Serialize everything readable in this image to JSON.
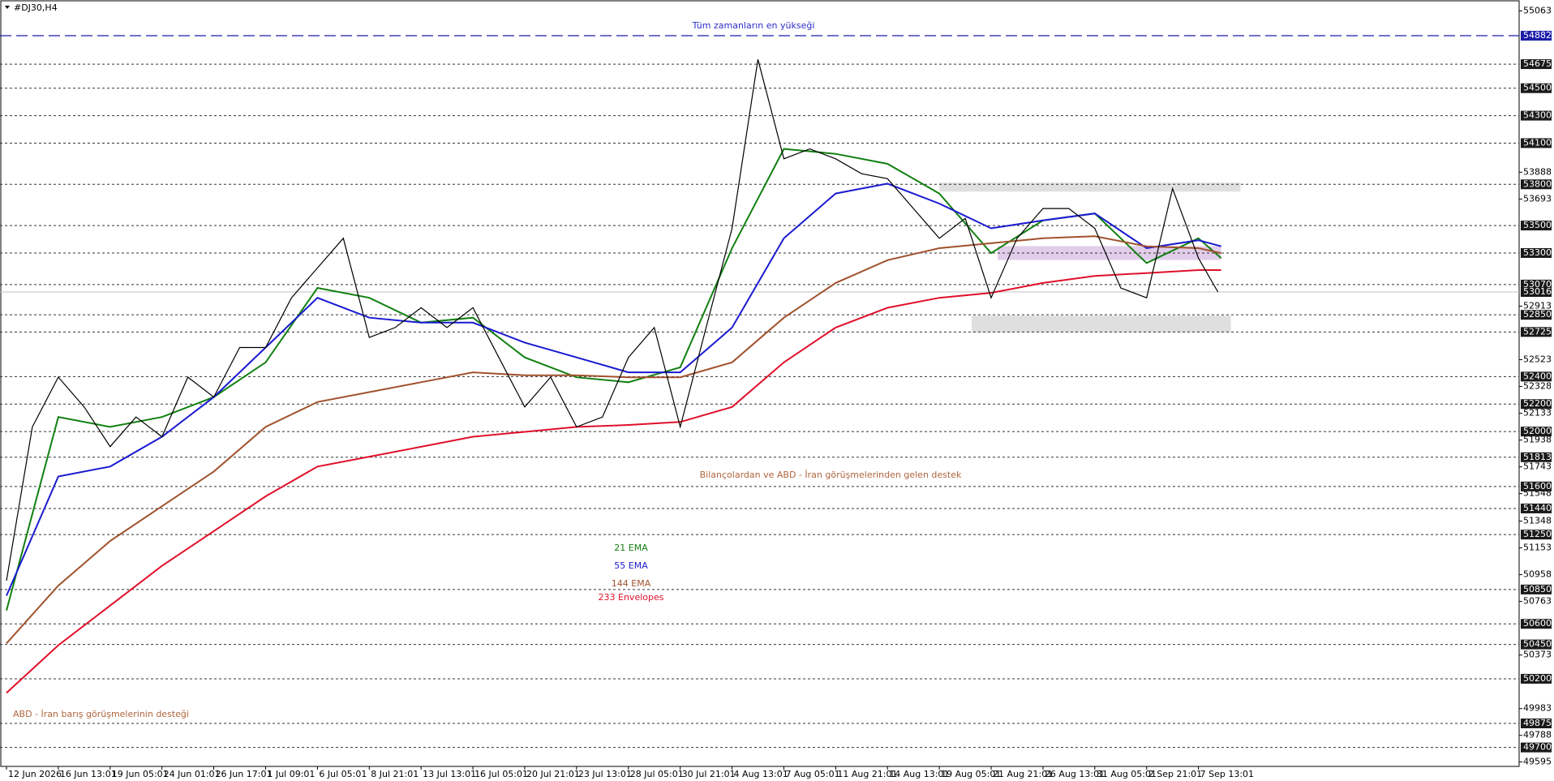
{
  "chart_data": {
    "type": "line",
    "title": "#DJ30,H4",
    "xlim": [
      -2,
      467
    ],
    "ylim": [
      49562,
      55142
    ],
    "xticks": [
      {
        "value": 0,
        "label": "12 Jun 2026"
      },
      {
        "value": 16,
        "label": "16 Jun 13:01"
      },
      {
        "value": 32,
        "label": "19 Jun 05:01"
      },
      {
        "value": 48,
        "label": "24 Jun 01:01"
      },
      {
        "value": 64,
        "label": "26 Jun 17:01"
      },
      {
        "value": 80,
        "label": "1 Jul 09:01"
      },
      {
        "value": 96,
        "label": "6 Jul 05:01"
      },
      {
        "value": 112,
        "label": "8 Jul 21:01"
      },
      {
        "value": 128,
        "label": "13 Jul 13:01"
      },
      {
        "value": 144,
        "label": "16 Jul 05:01"
      },
      {
        "value": 160,
        "label": "20 Jul 21:01"
      },
      {
        "value": 176,
        "label": "23 Jul 13:01"
      },
      {
        "value": 192,
        "label": "28 Jul 05:01"
      },
      {
        "value": 208,
        "label": "30 Jul 21:01"
      },
      {
        "value": 224,
        "label": "4 Aug 13:01"
      },
      {
        "value": 240,
        "label": "7 Aug 05:01"
      },
      {
        "value": 256,
        "label": "11 Aug 21:01"
      },
      {
        "value": 272,
        "label": "14 Aug 13:01"
      },
      {
        "value": 288,
        "label": "19 Aug 05:01"
      },
      {
        "value": 304,
        "label": "21 Aug 21:01"
      },
      {
        "value": 320,
        "label": "26 Aug 13:01"
      },
      {
        "value": 336,
        "label": "31 Aug 05:01"
      },
      {
        "value": 352,
        "label": "2 Sep 21:01"
      },
      {
        "value": 368,
        "label": "7 Sep 13:01"
      }
    ],
    "yticks": [
      55063,
      53888,
      53693,
      52913,
      52523,
      52328,
      52133,
      51938,
      51743,
      51548,
      51348,
      51153,
      50958,
      50763,
      50373,
      49983,
      49788,
      49595
    ],
    "levels": [
      54675,
      54500,
      54300,
      54100,
      53800,
      53500,
      53300,
      53070,
      52850,
      52725,
      52400,
      52200,
      52000,
      51813,
      51600,
      51440,
      51250,
      50850,
      50600,
      50450,
      50200,
      49875,
      49700
    ],
    "high_level": 54882,
    "high_color": "#1c1ca8",
    "last_price": 53016,
    "price": {
      "color": "#000000",
      "x": [
        0,
        8,
        16,
        24,
        32,
        40,
        48,
        56,
        64,
        72,
        80,
        88,
        96,
        104,
        112,
        120,
        128,
        136,
        144,
        152,
        160,
        168,
        176,
        184,
        192,
        200,
        208,
        216,
        224,
        232,
        240,
        248,
        256,
        264,
        272,
        280,
        288,
        296,
        304,
        312,
        320,
        328,
        336,
        344,
        352,
        360,
        368,
        374
      ],
      "values": [
        50914,
        52034,
        52396,
        52179,
        51890,
        52106,
        51962,
        52396,
        52251,
        52612,
        52612,
        52974,
        53191,
        53407,
        52685,
        52757,
        52902,
        52757,
        52902,
        52540,
        52179,
        52396,
        52034,
        52106,
        52540,
        52757,
        52034,
        52757,
        53480,
        54709,
        53986,
        54058,
        53986,
        53877,
        53841,
        53624,
        53407,
        53552,
        52974,
        53407,
        53624,
        53624,
        53480,
        53046,
        52974,
        53769,
        53263,
        53016
      ]
    },
    "x": [
      0,
      16,
      32,
      48,
      64,
      80,
      96,
      112,
      128,
      144,
      160,
      176,
      192,
      208,
      224,
      240,
      256,
      272,
      288,
      304,
      320,
      336,
      352,
      368,
      375
    ],
    "series": [
      {
        "name": "21 EMA",
        "color": "#118011",
        "values": [
          50697,
          52106,
          52034,
          52106,
          52251,
          52504,
          53046,
          52974,
          52793,
          52829,
          52540,
          52395,
          52359,
          52468,
          53335,
          54058,
          54022,
          53949,
          53733,
          53299,
          53537,
          53588,
          53227,
          53407,
          53263
        ]
      },
      {
        "name": "55 EMA",
        "color": "#1a1ad0",
        "values": [
          50805,
          51673,
          51745,
          51962,
          52251,
          52612,
          52974,
          52829,
          52793,
          52793,
          52648,
          52540,
          52431,
          52431,
          52757,
          53407,
          53733,
          53805,
          53660,
          53480,
          53537,
          53588,
          53335,
          53393,
          53349
        ]
      },
      {
        "name": "144 EMA",
        "color": "#a0522d",
        "values": [
          50458,
          50878,
          51203,
          51456,
          51709,
          52034,
          52215,
          52287,
          52359,
          52431,
          52410,
          52410,
          52395,
          52395,
          52504,
          52829,
          53082,
          53248,
          53335,
          53371,
          53407,
          53422,
          53349,
          53335,
          53299
        ]
      },
      {
        "name": "233 Envelopes",
        "color": "#e0102a",
        "values": [
          50097,
          50444,
          50733,
          51022,
          51275,
          51528,
          51745,
          51817,
          51889,
          51962,
          51998,
          52034,
          52048,
          52070,
          52179,
          52504,
          52757,
          52901,
          52974,
          53010,
          53082,
          53133,
          53154,
          53176,
          53176
        ]
      }
    ],
    "zones": [
      {
        "x": [
          288,
          381
        ],
        "y": [
          53747,
          53812
        ],
        "color": "#d9d9d9"
      },
      {
        "x": [
          298,
          378
        ],
        "y": [
          52721,
          52844
        ],
        "color": "#d9d9d9"
      },
      {
        "x": [
          306,
          375
        ],
        "y": [
          53249,
          53350
        ],
        "color": "#dcc4e6"
      }
    ],
    "annotations": [
      {
        "text": "Tüm zamanların en yükseği",
        "color": "#2c2cc8"
      },
      {
        "text": "Bilançolardan ve ABD - İran görüşmelerinden gelen destek",
        "color": "#b0643c"
      },
      {
        "text": "ABD - İran barış görüşmelerinin desteği",
        "color": "#b0643c"
      }
    ]
  }
}
